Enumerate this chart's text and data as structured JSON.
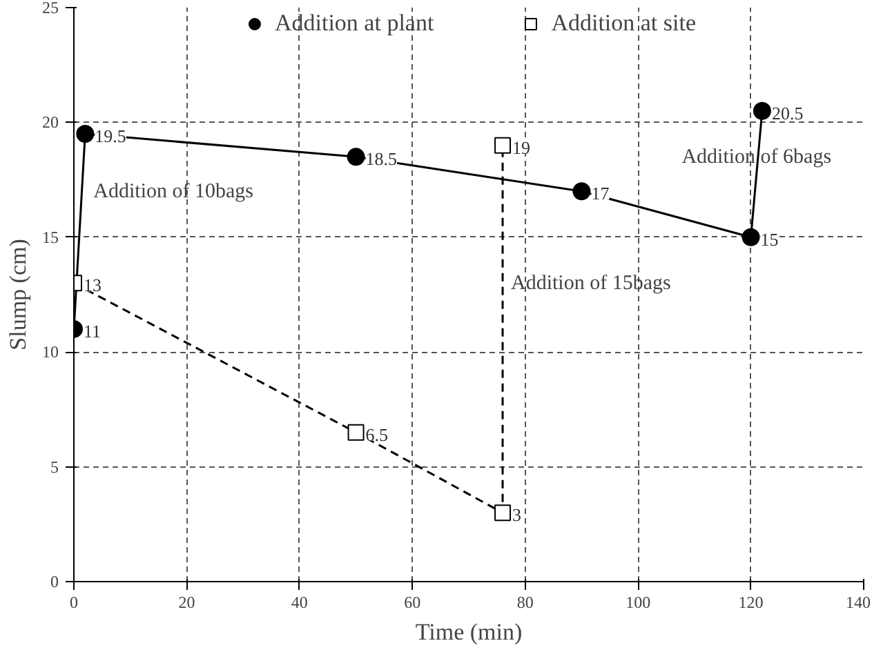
{
  "chart_data": {
    "type": "line",
    "xlabel": "Time (min)",
    "ylabel": "Slump (cm)",
    "xlim": [
      0,
      140
    ],
    "xticks": [
      0,
      20,
      40,
      60,
      80,
      100,
      120,
      140
    ],
    "ylim": [
      0,
      25
    ],
    "yticks": [
      0,
      5,
      10,
      15,
      20,
      25
    ],
    "grid": true,
    "legend": "top",
    "data_labels": true,
    "series": [
      {
        "name": "Addition at plant",
        "color": "#000000",
        "marker": "circle",
        "line_style": "solid",
        "x": [
          0,
          2,
          50,
          90,
          120,
          122
        ],
        "values": [
          11,
          19.5,
          18.5,
          17,
          15,
          20.5
        ]
      },
      {
        "name": "Addition at site",
        "color": "#000000",
        "marker": "square",
        "line_style": "dashed",
        "x": [
          0,
          50,
          76,
          76
        ],
        "values": [
          13,
          6.5,
          3,
          19
        ]
      }
    ],
    "annotations": [
      {
        "text": "Addition of 10bags",
        "x": 2,
        "y": 16.5
      },
      {
        "text": "Addition of 15bags",
        "x": 76,
        "y": 12.5
      },
      {
        "text": "Addition of 6bags",
        "x": 121,
        "y": 18
      }
    ]
  }
}
